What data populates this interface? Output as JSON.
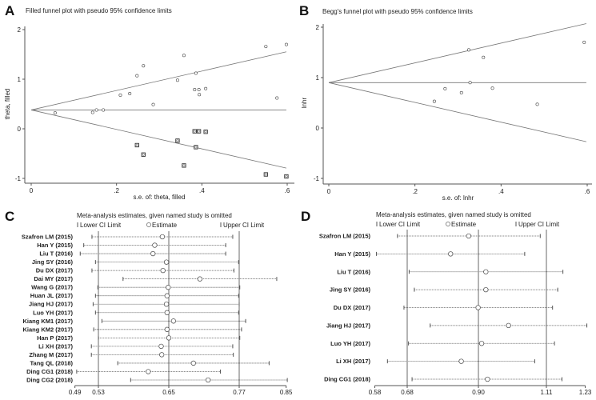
{
  "chart_data": [
    {
      "panel": "A",
      "type": "scatter",
      "title": "Filled funnel plot with pseudo 95% confidence limits",
      "xlabel": "s.e. of: theta, filled",
      "ylabel": "theta, filled",
      "xlim": [
        0,
        0.6
      ],
      "ylim": [
        -1,
        2
      ],
      "xticks": [
        "0",
        ".2",
        ".4",
        ".6"
      ],
      "xtick_values": [
        0,
        0.2,
        0.4,
        0.6
      ],
      "yticks": [
        "-1",
        "0",
        "1",
        "2"
      ],
      "ytick_values": [
        -1,
        0,
        1,
        2
      ],
      "pooled_estimate": 0.38,
      "ci_multiplier": 1.96,
      "observed": [
        [
          0.056,
          0.32
        ],
        [
          0.144,
          0.33
        ],
        [
          0.153,
          0.38
        ],
        [
          0.169,
          0.38
        ],
        [
          0.209,
          0.68
        ],
        [
          0.231,
          0.71
        ],
        [
          0.248,
          1.07
        ],
        [
          0.263,
          1.27
        ],
        [
          0.286,
          0.49
        ],
        [
          0.343,
          0.98
        ],
        [
          0.358,
          1.48
        ],
        [
          0.383,
          0.79
        ],
        [
          0.386,
          1.12
        ],
        [
          0.393,
          0.79
        ],
        [
          0.394,
          0.69
        ],
        [
          0.409,
          0.81
        ],
        [
          0.55,
          1.66
        ],
        [
          0.576,
          0.62
        ],
        [
          0.598,
          1.7
        ]
      ],
      "filled": [
        [
          0.248,
          -0.33
        ],
        [
          0.263,
          -0.52
        ],
        [
          0.343,
          -0.24
        ],
        [
          0.358,
          -0.74
        ],
        [
          0.383,
          -0.05
        ],
        [
          0.393,
          -0.05
        ],
        [
          0.386,
          -0.37
        ],
        [
          0.409,
          -0.06
        ],
        [
          0.55,
          -0.92
        ],
        [
          0.598,
          -0.96
        ]
      ]
    },
    {
      "panel": "B",
      "type": "scatter",
      "title": "Begg's funnel plot with pseudo 95% confidence limits",
      "xlabel": "s.e. of: lnhr",
      "ylabel": "lnhr",
      "xlim": [
        0,
        0.6
      ],
      "ylim": [
        -1,
        2
      ],
      "xticks": [
        "0",
        ".2",
        ".4",
        ".6"
      ],
      "xtick_values": [
        0,
        0.2,
        0.4,
        0.6
      ],
      "yticks": [
        "-1",
        "0",
        "1",
        "2"
      ],
      "ytick_values": [
        -1,
        0,
        1,
        2
      ],
      "pooled_estimate": 0.9,
      "ci_multiplier": 1.96,
      "points": [
        [
          0.245,
          0.53
        ],
        [
          0.27,
          0.78
        ],
        [
          0.308,
          0.7
        ],
        [
          0.325,
          1.55
        ],
        [
          0.328,
          0.9
        ],
        [
          0.359,
          1.4
        ],
        [
          0.38,
          0.79
        ],
        [
          0.484,
          0.47
        ],
        [
          0.593,
          1.7
        ]
      ]
    },
    {
      "panel": "C",
      "type": "forest",
      "title": "Meta-analysis estimates, given named study is omitted",
      "legend": [
        "Lower CI Limit",
        "Estimate",
        "Upper CI Limit"
      ],
      "xticks": [
        "0.49",
        "0.53",
        "0.65",
        "0.77",
        "0.85"
      ],
      "xtick_values": [
        0.49,
        0.53,
        0.65,
        0.77,
        0.85
      ],
      "reference_lines": [
        0.53,
        0.65,
        0.77
      ],
      "studies": [
        {
          "name": "Szafron LM (2015)",
          "lower": 0.519,
          "estimate": 0.639,
          "upper": 0.759
        },
        {
          "name": "Han Y (2015)",
          "lower": 0.505,
          "estimate": 0.626,
          "upper": 0.747
        },
        {
          "name": "Liu T (2016)",
          "lower": 0.499,
          "estimate": 0.623,
          "upper": 0.747
        },
        {
          "name": "Jing SY (2016)",
          "lower": 0.525,
          "estimate": 0.646,
          "upper": 0.769
        },
        {
          "name": "Du DX (2017)",
          "lower": 0.519,
          "estimate": 0.64,
          "upper": 0.761
        },
        {
          "name": "Dai MY (2017)",
          "lower": 0.572,
          "estimate": 0.703,
          "upper": 0.834
        },
        {
          "name": "Wang G (2017)",
          "lower": 0.529,
          "estimate": 0.649,
          "upper": 0.771
        },
        {
          "name": "Huan JL (2017)",
          "lower": 0.525,
          "estimate": 0.647,
          "upper": 0.769
        },
        {
          "name": "Jiang HJ (2017)",
          "lower": 0.521,
          "estimate": 0.646,
          "upper": 0.77
        },
        {
          "name": "Luo YH (2017)",
          "lower": 0.525,
          "estimate": 0.647,
          "upper": 0.769
        },
        {
          "name": "Kiang KM1 (2017)",
          "lower": 0.536,
          "estimate": 0.658,
          "upper": 0.781
        },
        {
          "name": "Kiang KM2 (2017)",
          "lower": 0.522,
          "estimate": 0.647,
          "upper": 0.774
        },
        {
          "name": "Han P (2017)",
          "lower": 0.53,
          "estimate": 0.65,
          "upper": 0.771
        },
        {
          "name": "Li XH (2017)",
          "lower": 0.518,
          "estimate": 0.637,
          "upper": 0.759
        },
        {
          "name": "Zhang M (2017)",
          "lower": 0.518,
          "estimate": 0.638,
          "upper": 0.76
        },
        {
          "name": "Tang QL (2018)",
          "lower": 0.563,
          "estimate": 0.692,
          "upper": 0.821
        },
        {
          "name": "Ding CG1 (2018)",
          "lower": 0.493,
          "estimate": 0.615,
          "upper": 0.738
        },
        {
          "name": "Ding CG2 (2018)",
          "lower": 0.585,
          "estimate": 0.717,
          "upper": 0.852
        }
      ]
    },
    {
      "panel": "D",
      "type": "forest",
      "title": "Meta-analysis estimates, given named study is omitted",
      "legend": [
        "Lower CI Limit",
        "Estimate",
        "Upper CI Limit"
      ],
      "xticks": [
        "0.58",
        "0.68",
        "0.90",
        "1.11",
        "1.23"
      ],
      "xtick_values": [
        0.58,
        0.68,
        0.9,
        1.11,
        1.23
      ],
      "reference_lines": [
        0.68,
        0.9,
        1.11
      ],
      "studies": [
        {
          "name": "Szafron LM (2015)",
          "lower": 0.65,
          "estimate": 0.87,
          "upper": 1.091
        },
        {
          "name": "Han Y (2015)",
          "lower": 0.585,
          "estimate": 0.814,
          "upper": 1.043
        },
        {
          "name": "Liu T (2016)",
          "lower": 0.686,
          "estimate": 0.923,
          "upper": 1.161
        },
        {
          "name": "Jing SY (2016)",
          "lower": 0.702,
          "estimate": 0.923,
          "upper": 1.145
        },
        {
          "name": "Du DX (2017)",
          "lower": 0.67,
          "estimate": 0.899,
          "upper": 1.129
        },
        {
          "name": "Jiang HJ (2017)",
          "lower": 0.751,
          "estimate": 0.993,
          "upper": 1.235
        },
        {
          "name": "Luo YH (2017)",
          "lower": 0.684,
          "estimate": 0.91,
          "upper": 1.135
        },
        {
          "name": "Li XH (2017)",
          "lower": 0.619,
          "estimate": 0.847,
          "upper": 1.074
        },
        {
          "name": "Ding CG1 (2018)",
          "lower": 0.695,
          "estimate": 0.928,
          "upper": 1.158
        }
      ]
    }
  ]
}
